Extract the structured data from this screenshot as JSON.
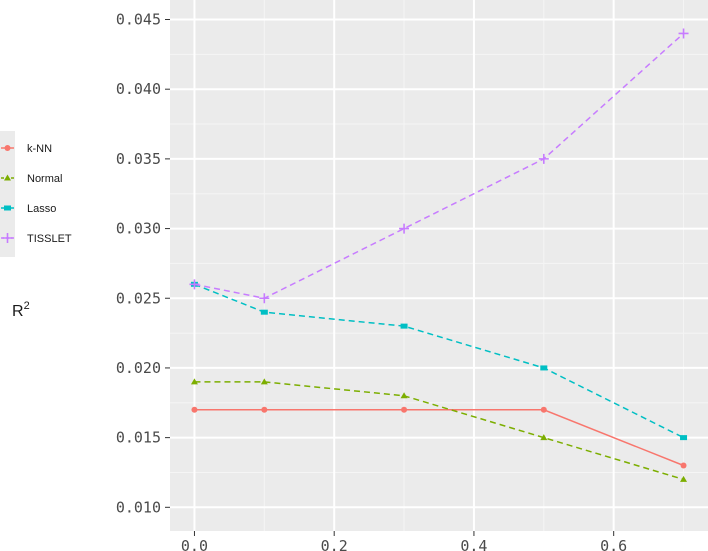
{
  "chart_data": {
    "type": "line",
    "x": [
      0.0,
      0.1,
      0.3,
      0.5,
      0.7
    ],
    "xlim": [
      -0.035,
      0.735
    ],
    "ylim": [
      0.0083,
      0.0464
    ],
    "x_ticks": [
      "0.0",
      "0.2",
      "0.4",
      "0.6"
    ],
    "x_tick_values": [
      0.0,
      0.2,
      0.4,
      0.6
    ],
    "y_ticks": [
      "0.010",
      "0.015",
      "0.020",
      "0.025",
      "0.030",
      "0.035",
      "0.040",
      "0.045"
    ],
    "y_tick_values": [
      0.01,
      0.015,
      0.02,
      0.025,
      0.03,
      0.035,
      0.04,
      0.045
    ],
    "ylabel": "R",
    "ylabel_superscript": "2",
    "grid": true,
    "legend_position": "left",
    "series": [
      {
        "name": "k-NN",
        "values": [
          0.017,
          0.017,
          0.017,
          0.017,
          0.013
        ],
        "color": "#F8766D",
        "marker": "circle",
        "dash": "solid"
      },
      {
        "name": "Normal",
        "values": [
          0.019,
          0.019,
          0.018,
          0.015,
          0.012
        ],
        "color": "#7CAE00",
        "marker": "triangle",
        "dash": "dashed"
      },
      {
        "name": "Lasso",
        "values": [
          0.026,
          0.024,
          0.023,
          0.02,
          0.015
        ],
        "color": "#00BFC4",
        "marker": "square",
        "dash": "dashed"
      },
      {
        "name": "TISSLET",
        "values": [
          0.026,
          0.025,
          0.03,
          0.035,
          0.044
        ],
        "color": "#C77CFF",
        "marker": "plus",
        "dash": "dashed"
      }
    ]
  }
}
